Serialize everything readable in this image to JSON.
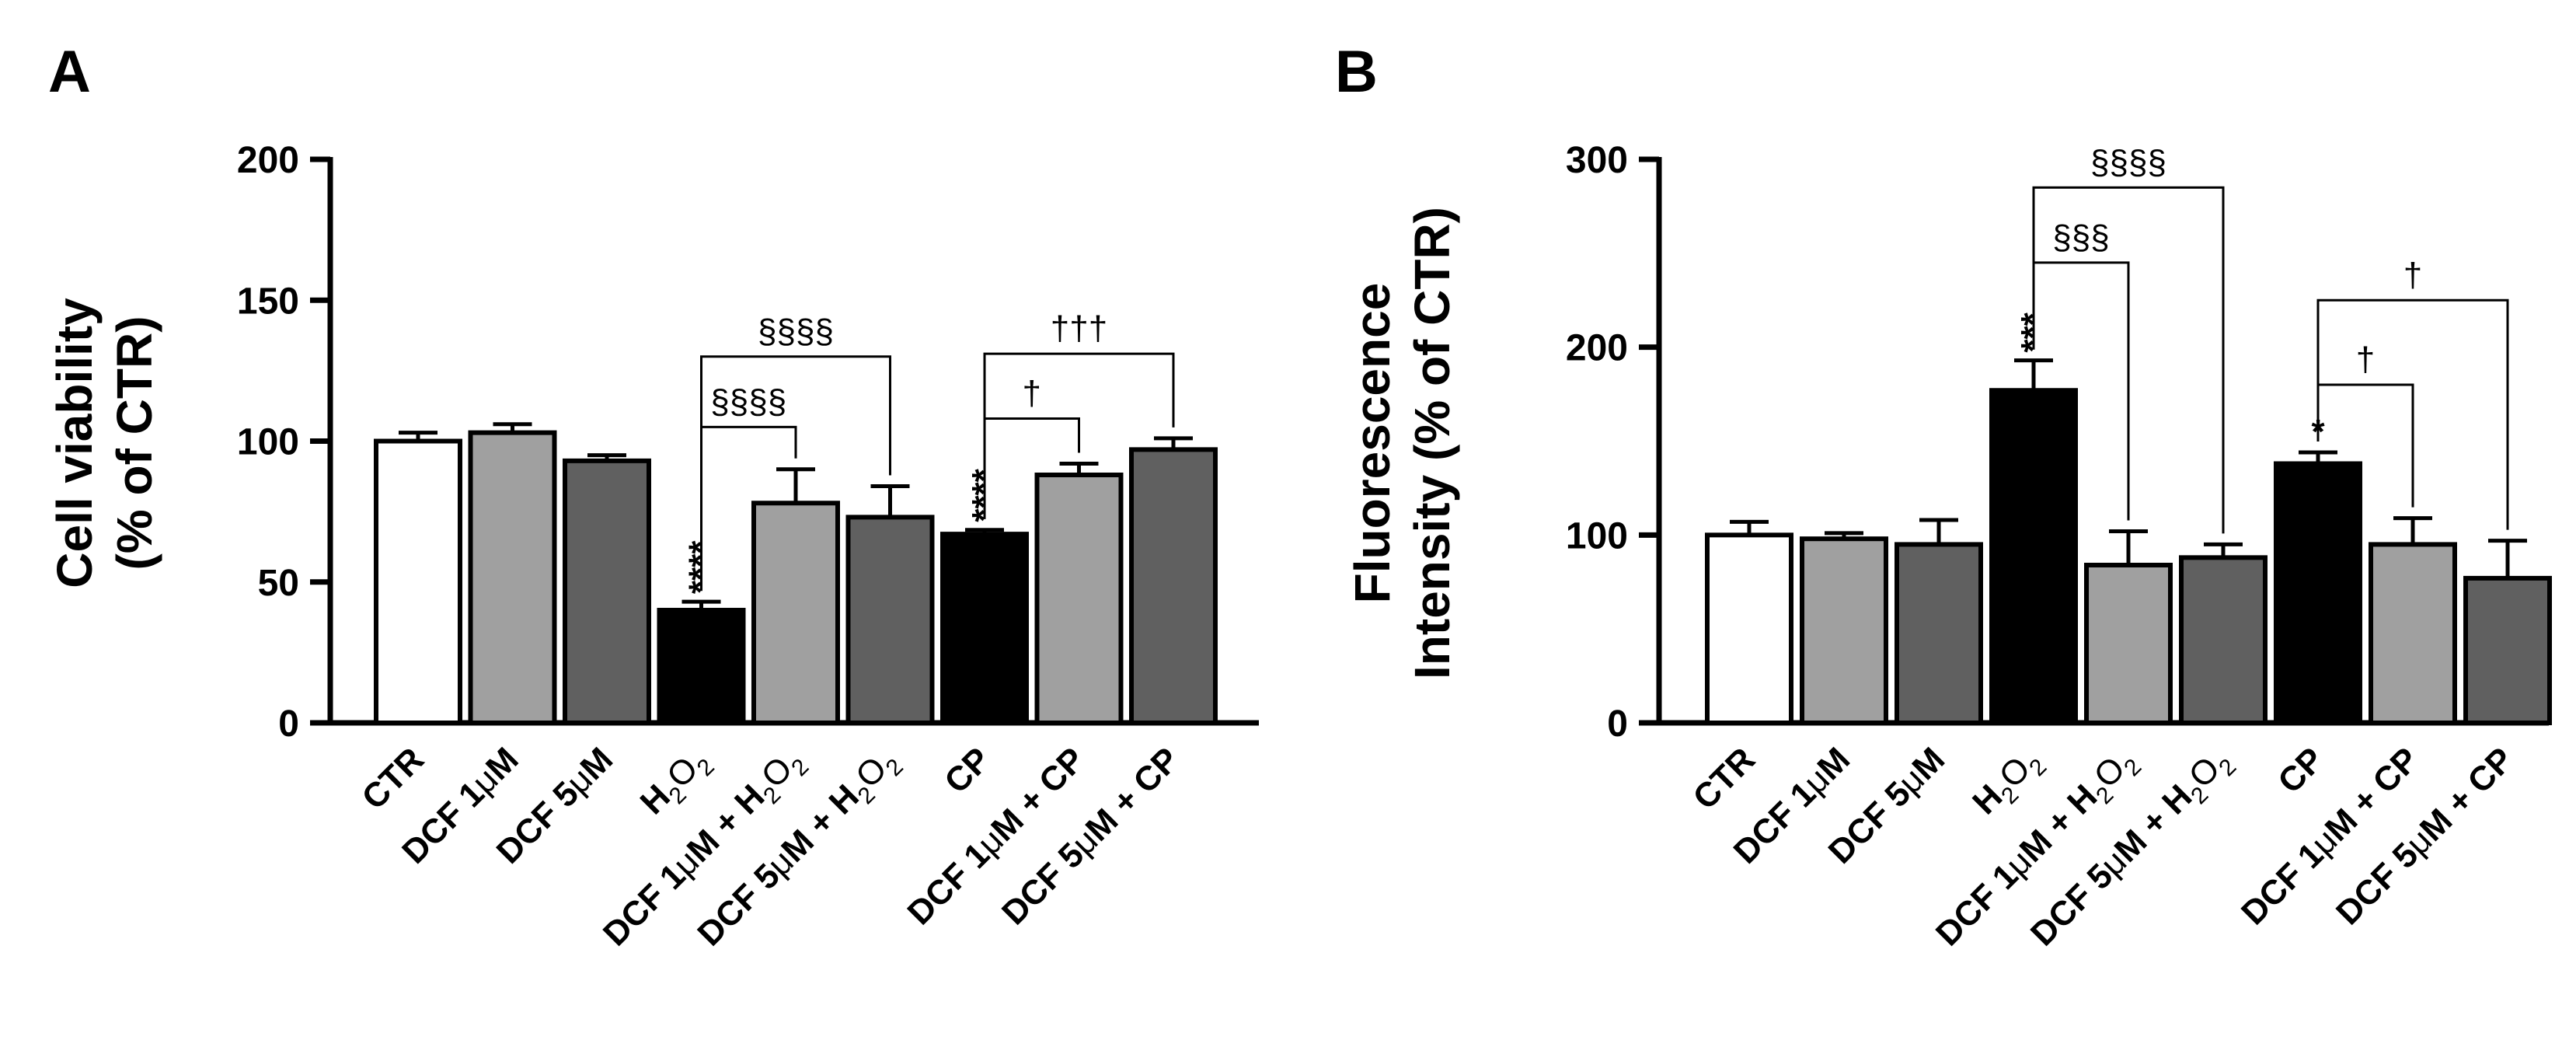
{
  "chart_data": [
    {
      "type": "bar",
      "panel_label": "A",
      "ylabel_line1": "Cell viability",
      "ylabel_line2": "(% of CTR)",
      "xlabel": "",
      "ylim": [
        0,
        200
      ],
      "yticks": [
        0,
        50,
        100,
        150,
        200
      ],
      "categories": [
        "CTR",
        "DCF 1μM",
        "DCF 5μM",
        "H2O2",
        "DCF 1μM + H2O2",
        "DCF 5μM + H2O2",
        "CP",
        "DCF 1μM + CP",
        "DCF 5μM + CP"
      ],
      "category_labels": [
        {
          "pre": "CTR"
        },
        {
          "pre": "DCF 1",
          "mu": "μ",
          "post": "M"
        },
        {
          "pre": "DCF 5",
          "mu": "μ",
          "post": "M"
        },
        {
          "pre": "H",
          "sub1": "2",
          "mid": "O",
          "sub2": "2"
        },
        {
          "pre": "DCF 1",
          "mu": "μ",
          "post": "M + H",
          "sub1": "2",
          "mid": "O",
          "sub2": "2"
        },
        {
          "pre": "DCF 5",
          "mu": "μ",
          "post": "M + H",
          "sub1": "2",
          "mid": "O",
          "sub2": "2"
        },
        {
          "pre": "CP"
        },
        {
          "pre": "DCF 1",
          "mu": "μ",
          "post": "M + CP"
        },
        {
          "pre": "DCF 5",
          "mu": "μ",
          "post": "M + CP"
        }
      ],
      "values": [
        100,
        103,
        93,
        40,
        78,
        73,
        67,
        88,
        97
      ],
      "errors": [
        3,
        3,
        2,
        3,
        12,
        11,
        1.5,
        4,
        4
      ],
      "bar_colors": [
        "#ffffff",
        "#a0a0a0",
        "#606060",
        "#000000",
        "#a0a0a0",
        "#606060",
        "#000000",
        "#a0a0a0",
        "#606060"
      ],
      "bar_annotations": [
        {
          "index": 3,
          "text": "****"
        },
        {
          "index": 6,
          "text": "****"
        }
      ],
      "brackets": [
        {
          "from": 3,
          "to": 4,
          "level": 105,
          "text": "§§§§"
        },
        {
          "from": 3,
          "to": 5,
          "level": 130,
          "text": "§§§§"
        },
        {
          "from": 6,
          "to": 7,
          "level": 108,
          "text": "†"
        },
        {
          "from": 6,
          "to": 8,
          "level": 131,
          "text": "†††"
        }
      ]
    },
    {
      "type": "bar",
      "panel_label": "B",
      "ylabel_line1": "Fluorescence",
      "ylabel_line2": "Intensity (% of CTR)",
      "xlabel": "",
      "ylim": [
        0,
        300
      ],
      "yticks": [
        0,
        100,
        200,
        300
      ],
      "categories": [
        "CTR",
        "DCF 1μM",
        "DCF 5μM",
        "H2O2",
        "DCF 1μM + H2O2",
        "DCF 5μM + H2O2",
        "CP",
        "DCF 1μM + CP",
        "DCF 5μM + CP"
      ],
      "category_labels": [
        {
          "pre": "CTR"
        },
        {
          "pre": "DCF 1",
          "mu": "μ",
          "post": "M"
        },
        {
          "pre": "DCF 5",
          "mu": "μ",
          "post": "M"
        },
        {
          "pre": "H",
          "sub1": "2",
          "mid": "O",
          "sub2": "2"
        },
        {
          "pre": "DCF 1",
          "mu": "μ",
          "post": "M + H",
          "sub1": "2",
          "mid": "O",
          "sub2": "2"
        },
        {
          "pre": "DCF 5",
          "mu": "μ",
          "post": "M + H",
          "sub1": "2",
          "mid": "O",
          "sub2": "2"
        },
        {
          "pre": "CP"
        },
        {
          "pre": "DCF 1",
          "mu": "μ",
          "post": "M + CP"
        },
        {
          "pre": "DCF 5",
          "mu": "μ",
          "post": "M + CP"
        }
      ],
      "values": [
        100,
        98,
        95,
        177,
        84,
        88,
        138,
        95,
        77
      ],
      "errors": [
        7,
        3,
        13,
        16,
        18,
        7,
        6,
        14,
        20
      ],
      "bar_colors": [
        "#ffffff",
        "#a0a0a0",
        "#606060",
        "#000000",
        "#a0a0a0",
        "#606060",
        "#000000",
        "#a0a0a0",
        "#606060"
      ],
      "bar_annotations": [
        {
          "index": 3,
          "text": "***"
        },
        {
          "index": 6,
          "text": "*"
        }
      ],
      "brackets": [
        {
          "from": 3,
          "to": 4,
          "level": 245,
          "text": "§§§"
        },
        {
          "from": 3,
          "to": 5,
          "level": 285,
          "text": "§§§§"
        },
        {
          "from": 6,
          "to": 7,
          "level": 180,
          "text": "†"
        },
        {
          "from": 6,
          "to": 8,
          "level": 225,
          "text": "†"
        }
      ]
    }
  ]
}
